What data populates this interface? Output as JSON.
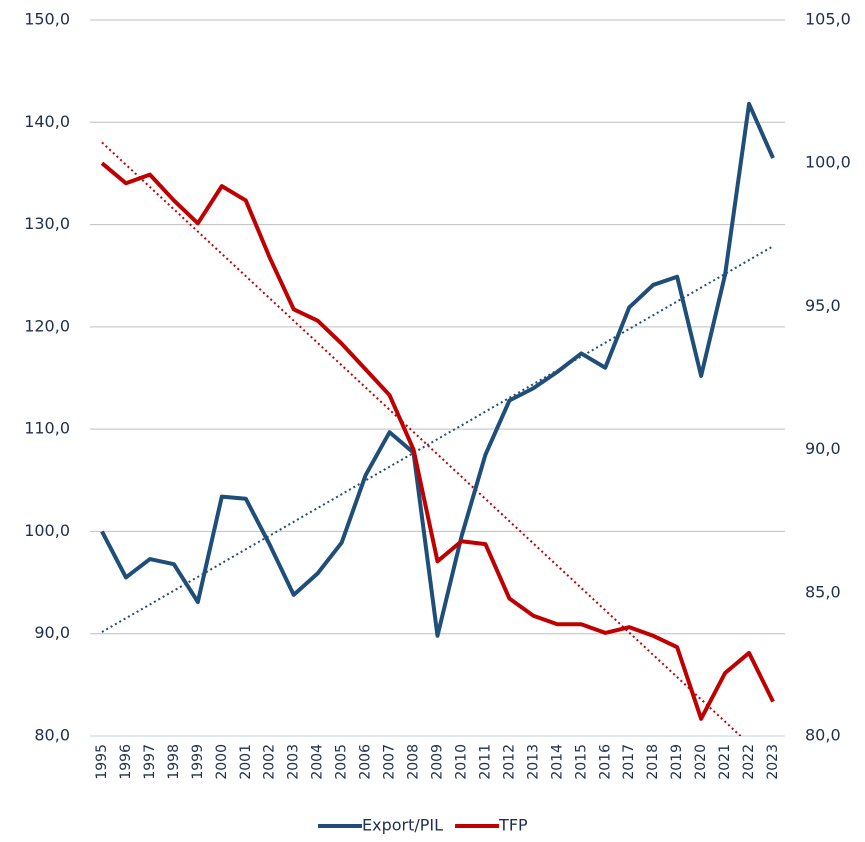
{
  "chart_data": {
    "type": "line",
    "categories": [
      "1995",
      "1996",
      "1997",
      "1998",
      "1999",
      "2000",
      "2001",
      "2002",
      "2003",
      "2004",
      "2005",
      "2006",
      "2007",
      "2008",
      "2009",
      "2010",
      "2011",
      "2012",
      "2013",
      "2014",
      "2015",
      "2016",
      "2017",
      "2018",
      "2019",
      "2020",
      "2021",
      "2022",
      "2023"
    ],
    "series": [
      {
        "name": "Export/PIL",
        "color": "#1f4e79",
        "trendline": true,
        "values": [
          100.0,
          95.5,
          97.3,
          96.8,
          93.1,
          103.4,
          103.2,
          98.7,
          93.8,
          95.9,
          98.9,
          105.5,
          109.7,
          107.7,
          89.8,
          99.5,
          107.5,
          112.8,
          114.0,
          115.6,
          117.4,
          116.0,
          121.9,
          124.1,
          124.9,
          115.2,
          125.1,
          141.8,
          136.5
        ]
      },
      {
        "name": "TFP",
        "color": "#c00000",
        "axis": "y2",
        "trendline": true,
        "values": [
          100.0,
          99.3,
          99.6,
          98.7,
          97.9,
          99.2,
          98.7,
          96.7,
          94.9,
          94.5,
          93.7,
          92.8,
          91.9,
          90.0,
          86.1,
          86.8,
          86.7,
          84.8,
          84.2,
          83.9,
          83.9,
          83.6,
          83.8,
          83.5,
          83.1,
          80.6,
          82.2,
          82.9,
          81.2
        ]
      }
    ],
    "ylim": [
      80,
      150
    ],
    "yticks": [
      {
        "value": 80,
        "label": "80,0"
      },
      {
        "value": 90,
        "label": "90,0"
      },
      {
        "value": 100,
        "label": "100,0"
      },
      {
        "value": 110,
        "label": "110,0"
      },
      {
        "value": 120,
        "label": "120,0"
      },
      {
        "value": 130,
        "label": "130,0"
      },
      {
        "value": 140,
        "label": "140,0"
      },
      {
        "value": 150,
        "label": "150,0"
      }
    ],
    "y2lim": [
      80,
      105
    ],
    "y2ticks": [
      {
        "value": 80,
        "label": "80,0"
      },
      {
        "value": 85,
        "label": "85,0"
      },
      {
        "value": 90,
        "label": "90,0"
      },
      {
        "value": 95,
        "label": "95,0"
      },
      {
        "value": 100,
        "label": "100,0"
      },
      {
        "value": 105,
        "label": "105,0"
      }
    ],
    "grid": true,
    "legend": "bottom"
  }
}
